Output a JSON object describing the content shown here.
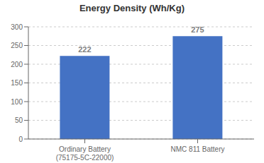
{
  "chart_data": {
    "type": "bar",
    "title": "Energy Density (Wh/Kg)",
    "categories": [
      "Ordinary Battery\n(75175-5C-22000)",
      "NMC 811 Battery"
    ],
    "values": [
      222,
      275
    ],
    "color": "#4472C4",
    "ylim": [
      0,
      300
    ],
    "yticks": [
      0,
      50,
      100,
      150,
      200,
      250,
      300
    ],
    "grid": true,
    "data_labels": true
  }
}
